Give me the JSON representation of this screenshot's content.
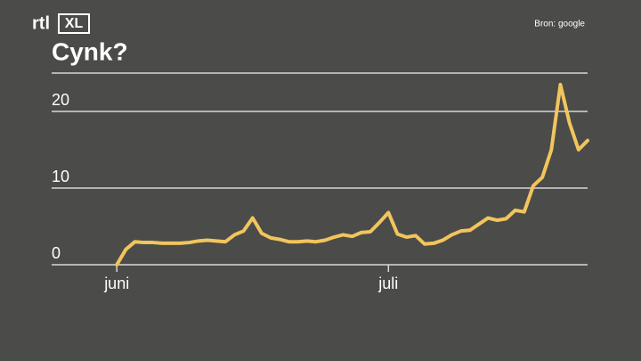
{
  "logo": {
    "text": "rtl",
    "badge": "XL"
  },
  "chart_data": {
    "type": "line",
    "title": "Cynk?",
    "source": "Bron: google",
    "x": [
      0,
      1,
      2,
      3,
      4,
      5,
      6,
      7,
      8,
      9,
      10,
      11,
      12,
      13,
      14,
      15,
      16,
      17,
      18,
      19,
      20,
      21,
      22,
      23,
      24,
      25,
      26,
      27,
      28,
      29,
      30,
      31,
      32,
      33,
      34,
      35,
      36,
      37,
      38,
      39,
      40,
      41,
      42,
      43,
      44,
      45,
      46,
      47,
      48,
      49,
      50,
      51,
      52
    ],
    "series": [
      {
        "name": "Cynk",
        "color": "#f2c55c",
        "values": [
          0,
          2.0,
          3.0,
          2.9,
          2.9,
          2.8,
          2.8,
          2.8,
          2.9,
          3.1,
          3.2,
          3.1,
          3.0,
          3.9,
          4.4,
          6.1,
          4.1,
          3.5,
          3.3,
          3.0,
          3.0,
          3.1,
          3.0,
          3.2,
          3.6,
          3.9,
          3.7,
          4.2,
          4.3,
          5.5,
          6.8,
          4.0,
          3.6,
          3.8,
          2.7,
          2.8,
          3.2,
          3.9,
          4.4,
          4.5,
          5.3,
          6.1,
          5.8,
          6.0,
          7.1,
          6.9,
          10.3,
          11.4,
          15.0,
          23.5,
          18.5,
          15.0,
          16.2
        ]
      }
    ],
    "xlim": [
      -7.2,
      52
    ],
    "xticks": [
      {
        "value": 0,
        "label": "juni"
      },
      {
        "value": 30,
        "label": "juli"
      }
    ],
    "ylim": [
      0,
      25
    ],
    "yticks": [
      0,
      10,
      20
    ],
    "grid": true
  }
}
